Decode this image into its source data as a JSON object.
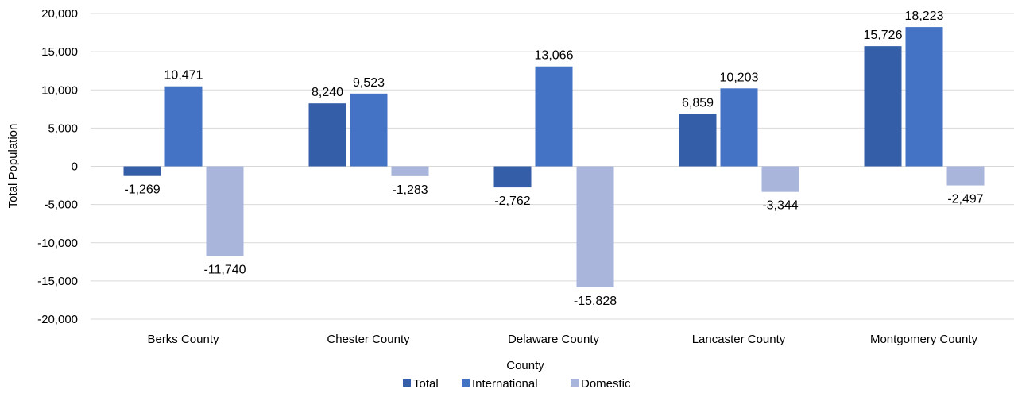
{
  "chart_data": {
    "type": "bar",
    "title": "",
    "xlabel": "County",
    "ylabel": "Total Population",
    "categories": [
      "Berks County",
      "Chester County",
      "Delaware County",
      "Lancaster County",
      "Montgomery County"
    ],
    "series": [
      {
        "name": "Total",
        "color": "#355EA8",
        "values": [
          -1269,
          8240,
          -2762,
          6859,
          15726
        ],
        "labels": [
          "-1,269",
          "8,240",
          "-2,762",
          "6,859",
          "15,726"
        ]
      },
      {
        "name": "International",
        "color": "#4472C4",
        "values": [
          10471,
          9523,
          13066,
          10203,
          18223
        ],
        "labels": [
          "10,471",
          "9,523",
          "13,066",
          "10,203",
          "18,223"
        ]
      },
      {
        "name": "Domestic",
        "color": "#A9B5DB",
        "values": [
          -11740,
          -1283,
          -15828,
          -3344,
          -2497
        ],
        "labels": [
          "-11,740",
          "-1,283",
          "-15,828",
          "-3,344",
          "-2,497"
        ]
      }
    ],
    "ylim": [
      -20000,
      20000
    ],
    "yticks": [
      20000,
      15000,
      10000,
      5000,
      0,
      -5000,
      -10000,
      -15000,
      -20000
    ],
    "ytick_labels": [
      "20,000",
      "15,000",
      "10,000",
      "5,000",
      "0",
      "-5,000",
      "-10,000",
      "-15,000",
      "-20,000"
    ],
    "grid": true,
    "legend_position": "bottom"
  }
}
